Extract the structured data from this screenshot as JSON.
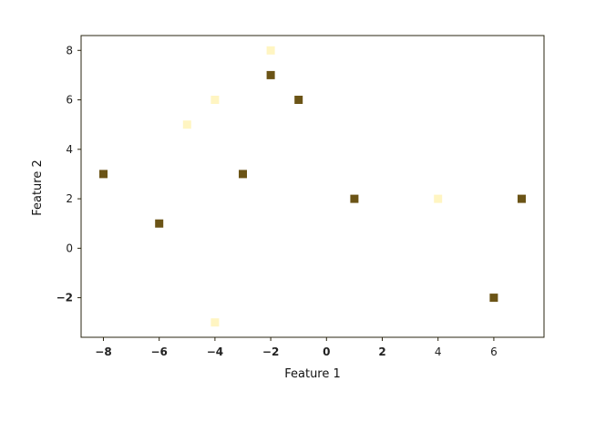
{
  "chart_data": {
    "type": "scatter",
    "xlabel": "Feature 1",
    "ylabel": "Feature 2",
    "xlim": [
      -8.8,
      7.8
    ],
    "ylim": [
      -3.6,
      8.6
    ],
    "xticks": [
      -8,
      -6,
      -4,
      -2,
      0,
      2,
      4,
      6
    ],
    "xtick_labels": [
      "−8",
      "−6",
      "−4",
      "−2",
      "0",
      "2",
      "4",
      "6"
    ],
    "yticks": [
      -2,
      0,
      2,
      4,
      6,
      8
    ],
    "ytick_labels": [
      "−2",
      "0",
      "2",
      "4",
      "6",
      "8"
    ],
    "grid": false,
    "marker": "square",
    "colors": {
      "dark": "#6b5416",
      "light": "#fff5c2"
    },
    "points": [
      {
        "x": -8,
        "y": 3,
        "class": "dark"
      },
      {
        "x": -6,
        "y": 1,
        "class": "dark"
      },
      {
        "x": -5,
        "y": 5,
        "class": "light"
      },
      {
        "x": -4,
        "y": 6,
        "class": "light"
      },
      {
        "x": -4,
        "y": -3,
        "class": "light"
      },
      {
        "x": -3,
        "y": 3,
        "class": "dark"
      },
      {
        "x": -2,
        "y": 8,
        "class": "light"
      },
      {
        "x": -2,
        "y": 7,
        "class": "dark"
      },
      {
        "x": -1,
        "y": 6,
        "class": "dark"
      },
      {
        "x": 1,
        "y": 2,
        "class": "dark"
      },
      {
        "x": 4,
        "y": 2,
        "class": "light"
      },
      {
        "x": 6,
        "y": -2,
        "class": "dark"
      },
      {
        "x": 7,
        "y": 2,
        "class": "dark"
      }
    ]
  }
}
